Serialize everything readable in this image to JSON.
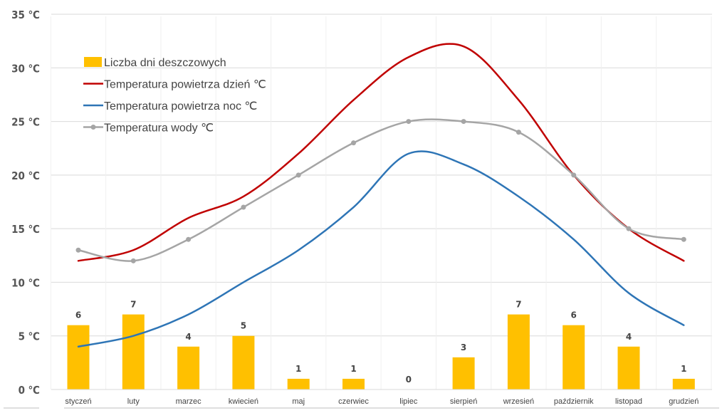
{
  "chart_data": {
    "type": "bar+line",
    "categories": [
      "styczeń",
      "luty",
      "marzec",
      "kwiecień",
      "maj",
      "czerwiec",
      "lipiec",
      "sierpień",
      "wrzesień",
      "październik",
      "listopad",
      "grudzień"
    ],
    "ylim": [
      0,
      35
    ],
    "yticks": [
      0,
      5,
      10,
      15,
      20,
      25,
      30,
      35
    ],
    "ytick_labels": [
      "0 ℃",
      "5 ℃",
      "10 ℃",
      "15 ℃",
      "20 ℃",
      "25 ℃",
      "30 ℃",
      "35 ℃"
    ],
    "grid": true,
    "legend_position": "top-left",
    "series": [
      {
        "name": "Liczba dni deszczowych",
        "type": "bar",
        "color": "#FFC000",
        "values": [
          6,
          7,
          4,
          5,
          1,
          1,
          0,
          3,
          7,
          6,
          4,
          1
        ],
        "data_labels": true
      },
      {
        "name": "Temperatura powietrza dzień ℃",
        "type": "line",
        "color": "#C00000",
        "values": [
          12,
          13,
          16,
          18,
          22,
          27,
          31,
          32,
          27,
          20,
          15,
          12
        ]
      },
      {
        "name": "Temperatura powietrza noc ℃",
        "type": "line",
        "color": "#2E75B6",
        "values": [
          4,
          5,
          7,
          10,
          13,
          17,
          22,
          21,
          18,
          14,
          9,
          6
        ]
      },
      {
        "name": "Temperatura wody ℃",
        "type": "line",
        "color": "#A5A5A5",
        "markers": true,
        "values": [
          13,
          12,
          14,
          17,
          20,
          23,
          25,
          25,
          24,
          20,
          15,
          14
        ]
      }
    ]
  }
}
